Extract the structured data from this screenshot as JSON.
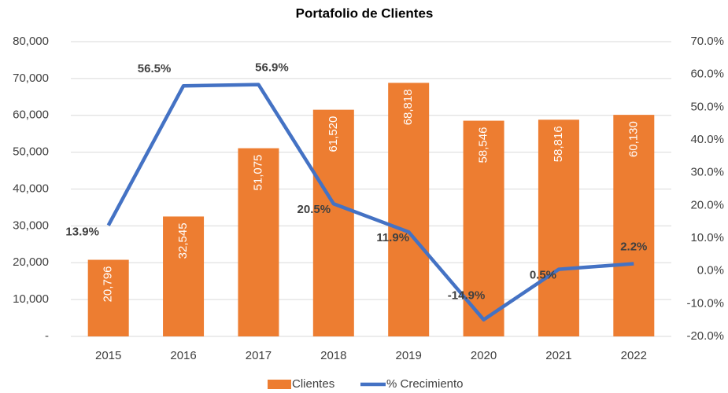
{
  "chart_data": {
    "type": "bar_line",
    "title": "Portafolio de Clientes",
    "categories": [
      "2015",
      "2016",
      "2017",
      "2018",
      "2019",
      "2020",
      "2021",
      "2022"
    ],
    "series": [
      {
        "name": "Clientes",
        "type": "bar",
        "color": "#ED7D31",
        "values": [
          20796,
          32545,
          51075,
          61520,
          68818,
          58546,
          58816,
          60130
        ],
        "value_labels": [
          "20,796",
          "32,545",
          "51,075",
          "61,520",
          "68,818",
          "58,546",
          "58,816",
          "60,130"
        ]
      },
      {
        "name": "% Crecimiento",
        "type": "line",
        "axis": "y2",
        "color": "#4472C4",
        "values": [
          13.9,
          56.5,
          56.9,
          20.5,
          11.9,
          -14.9,
          0.5,
          2.2
        ],
        "value_labels": [
          "13.9%",
          "56.5%",
          "56.9%",
          "20.5%",
          "11.9%",
          "-14.9%",
          "0.5%",
          "2.2%"
        ]
      }
    ],
    "ylim": [
      0,
      80000
    ],
    "yticks": [
      {
        "value": 0,
        "label": "-"
      },
      {
        "value": 10000,
        "label": "10,000"
      },
      {
        "value": 20000,
        "label": "20,000"
      },
      {
        "value": 30000,
        "label": "30,000"
      },
      {
        "value": 40000,
        "label": "40,000"
      },
      {
        "value": 50000,
        "label": "50,000"
      },
      {
        "value": 60000,
        "label": "60,000"
      },
      {
        "value": 70000,
        "label": "70,000"
      },
      {
        "value": 80000,
        "label": "80,000"
      }
    ],
    "y2lim": [
      -20,
      70
    ],
    "y2ticks": [
      {
        "value": -20,
        "label": "-20.0%"
      },
      {
        "value": -10,
        "label": "-10.0%"
      },
      {
        "value": 0,
        "label": "0.0%"
      },
      {
        "value": 10,
        "label": "10.0%"
      },
      {
        "value": 20,
        "label": "20.0%"
      },
      {
        "value": 30,
        "label": "30.0%"
      },
      {
        "value": 40,
        "label": "40.0%"
      },
      {
        "value": 50,
        "label": "50.0%"
      },
      {
        "value": 60,
        "label": "60.0%"
      },
      {
        "value": 70,
        "label": "70.0%"
      }
    ],
    "grid": true,
    "legend": "bottom"
  }
}
